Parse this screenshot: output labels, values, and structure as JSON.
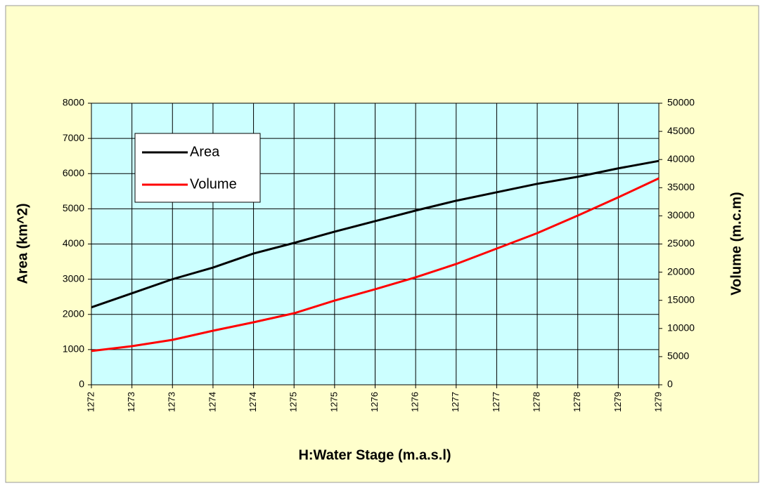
{
  "chart_data": {
    "type": "line",
    "x_label": "H:Water Stage (m.a.s.l)",
    "y_label": "Area (km^2)",
    "y2_label": "Volume (m.c.m)",
    "categories": [
      "1272",
      "1273",
      "1273",
      "1274",
      "1274",
      "1275",
      "1275",
      "1276",
      "1276",
      "1277",
      "1277",
      "1278",
      "1278",
      "1279",
      "1279"
    ],
    "series": [
      {
        "name": "Area",
        "color": "#000000",
        "values": [
          2200,
          2600,
          3000,
          3330,
          3730,
          4030,
          4350,
          4650,
          4950,
          5230,
          5470,
          5710,
          5910,
          6150,
          6360
        ]
      },
      {
        "name": "Volume",
        "color": "#ff0000",
        "axis": "y2",
        "values": [
          6000,
          6860,
          7980,
          9600,
          11100,
          12700,
          14960,
          16960,
          19080,
          21450,
          24190,
          26930,
          30050,
          33290,
          36660
        ]
      }
    ],
    "ylim": [
      0,
      8000
    ],
    "yticks": [
      0,
      1000,
      2000,
      3000,
      4000,
      5000,
      6000,
      7000,
      8000
    ],
    "y2lim": [
      0,
      50000
    ],
    "y2ticks": [
      0,
      5000,
      10000,
      15000,
      20000,
      25000,
      30000,
      35000,
      40000,
      45000,
      50000
    ],
    "grid": true,
    "legend": "upper left"
  }
}
